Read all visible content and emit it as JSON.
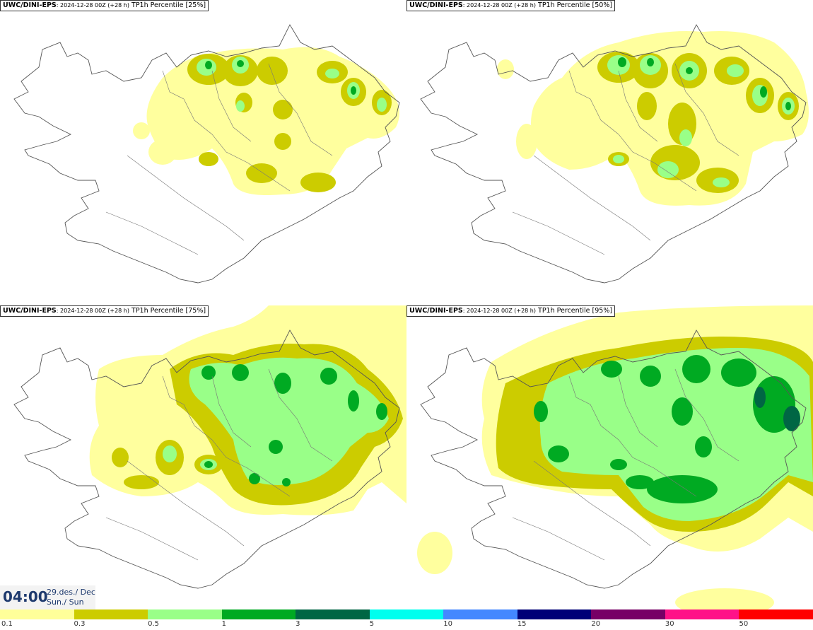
{
  "panels": [
    {
      "model": "UWC/DINI-EPS",
      "run": ": 2024-12-28 00Z (+28 h)",
      "field": " TP1h Percentile [25%]"
    },
    {
      "model": "UWC/DINI-EPS",
      "run": ": 2024-12-28 00Z (+28 h)",
      "field": " TP1h Percentile [50%]"
    },
    {
      "model": "UWC/DINI-EPS",
      "run": ": 2024-12-28 00Z (+28 h)",
      "field": " TP1h Percentile [75%]"
    },
    {
      "model": "UWC/DINI-EPS",
      "run": ": 2024-12-28 00Z (+28 h)",
      "field": " TP1h Percentile [95%]"
    }
  ],
  "time": {
    "hour": "04:00",
    "date": "29.des./ Dec",
    "day": "Sun./ Sun"
  },
  "legend": {
    "labels": [
      "0.1",
      "0.3",
      "0.5",
      "1",
      "3",
      "5",
      "10",
      "15",
      "20",
      "30",
      "50"
    ],
    "colors": [
      "#ffff99",
      "#cccc00",
      "#99ff88",
      "#00aa22",
      "#006644",
      "#00ffee",
      "#4488ff",
      "#000077",
      "#770066",
      "#ff1188",
      "#ff0000"
    ]
  },
  "colors": {
    "light": "#ffff99",
    "olive": "#cccc00",
    "lgreen": "#99ff88",
    "green": "#00aa22",
    "dgreen": "#006644"
  }
}
